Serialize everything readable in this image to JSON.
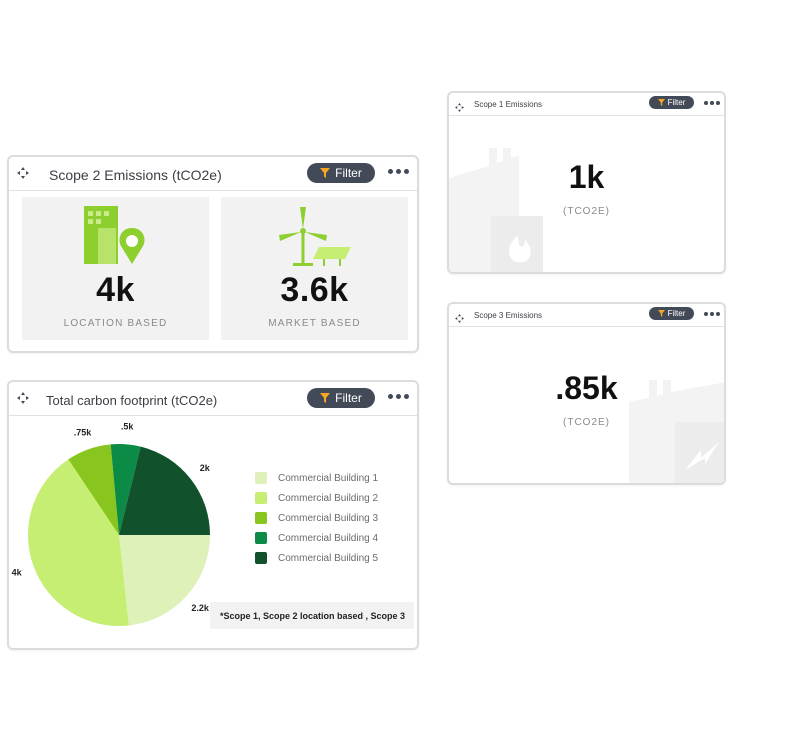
{
  "scope2": {
    "title": "Scope 2 Emissions (tCO2e)",
    "filter_label": "Filter",
    "metrics": [
      {
        "value": "4k",
        "label": "LOCATION BASED",
        "icon": "building-location-icon"
      },
      {
        "value": "3.6k",
        "label": "MARKET BASED",
        "icon": "wind-solar-icon"
      }
    ]
  },
  "carbon": {
    "title": "Total carbon footprint (tCO2e)",
    "filter_label": "Filter",
    "footnote": "*Scope 1, Scope 2 location based , Scope 3"
  },
  "scope1": {
    "title": "Scope 1 Emissions",
    "filter_label": "Filter",
    "value": "1k",
    "unit": "(TCO2E)"
  },
  "scope3": {
    "title": "Scope 3 Emissions",
    "filter_label": "Filter",
    "value": ".85k",
    "unit": "(TCO2E)"
  },
  "colors": {
    "filter_button": "#434a57",
    "tile_background": "#f2f2f2",
    "icon_green": "#8ccf2e"
  },
  "chart_data": {
    "type": "pie",
    "slices": [
      {
        "name": "Commercial Building 1",
        "value": 2.2,
        "label": "2.2k",
        "color": "#ddf1b9"
      },
      {
        "name": "Commercial Building 2",
        "value": 4,
        "label": "4k",
        "color": "#c5ee73"
      },
      {
        "name": "Commercial Building 3",
        "value": 0.75,
        "label": ".75k",
        "color": "#88c61f"
      },
      {
        "name": "Commercial Building 4",
        "value": 0.5,
        "label": ".5k",
        "color": "#0b8b45"
      },
      {
        "name": "Commercial Building 5",
        "value": 2,
        "label": "2k",
        "color": "#11522c"
      }
    ],
    "legend_position": "right"
  }
}
